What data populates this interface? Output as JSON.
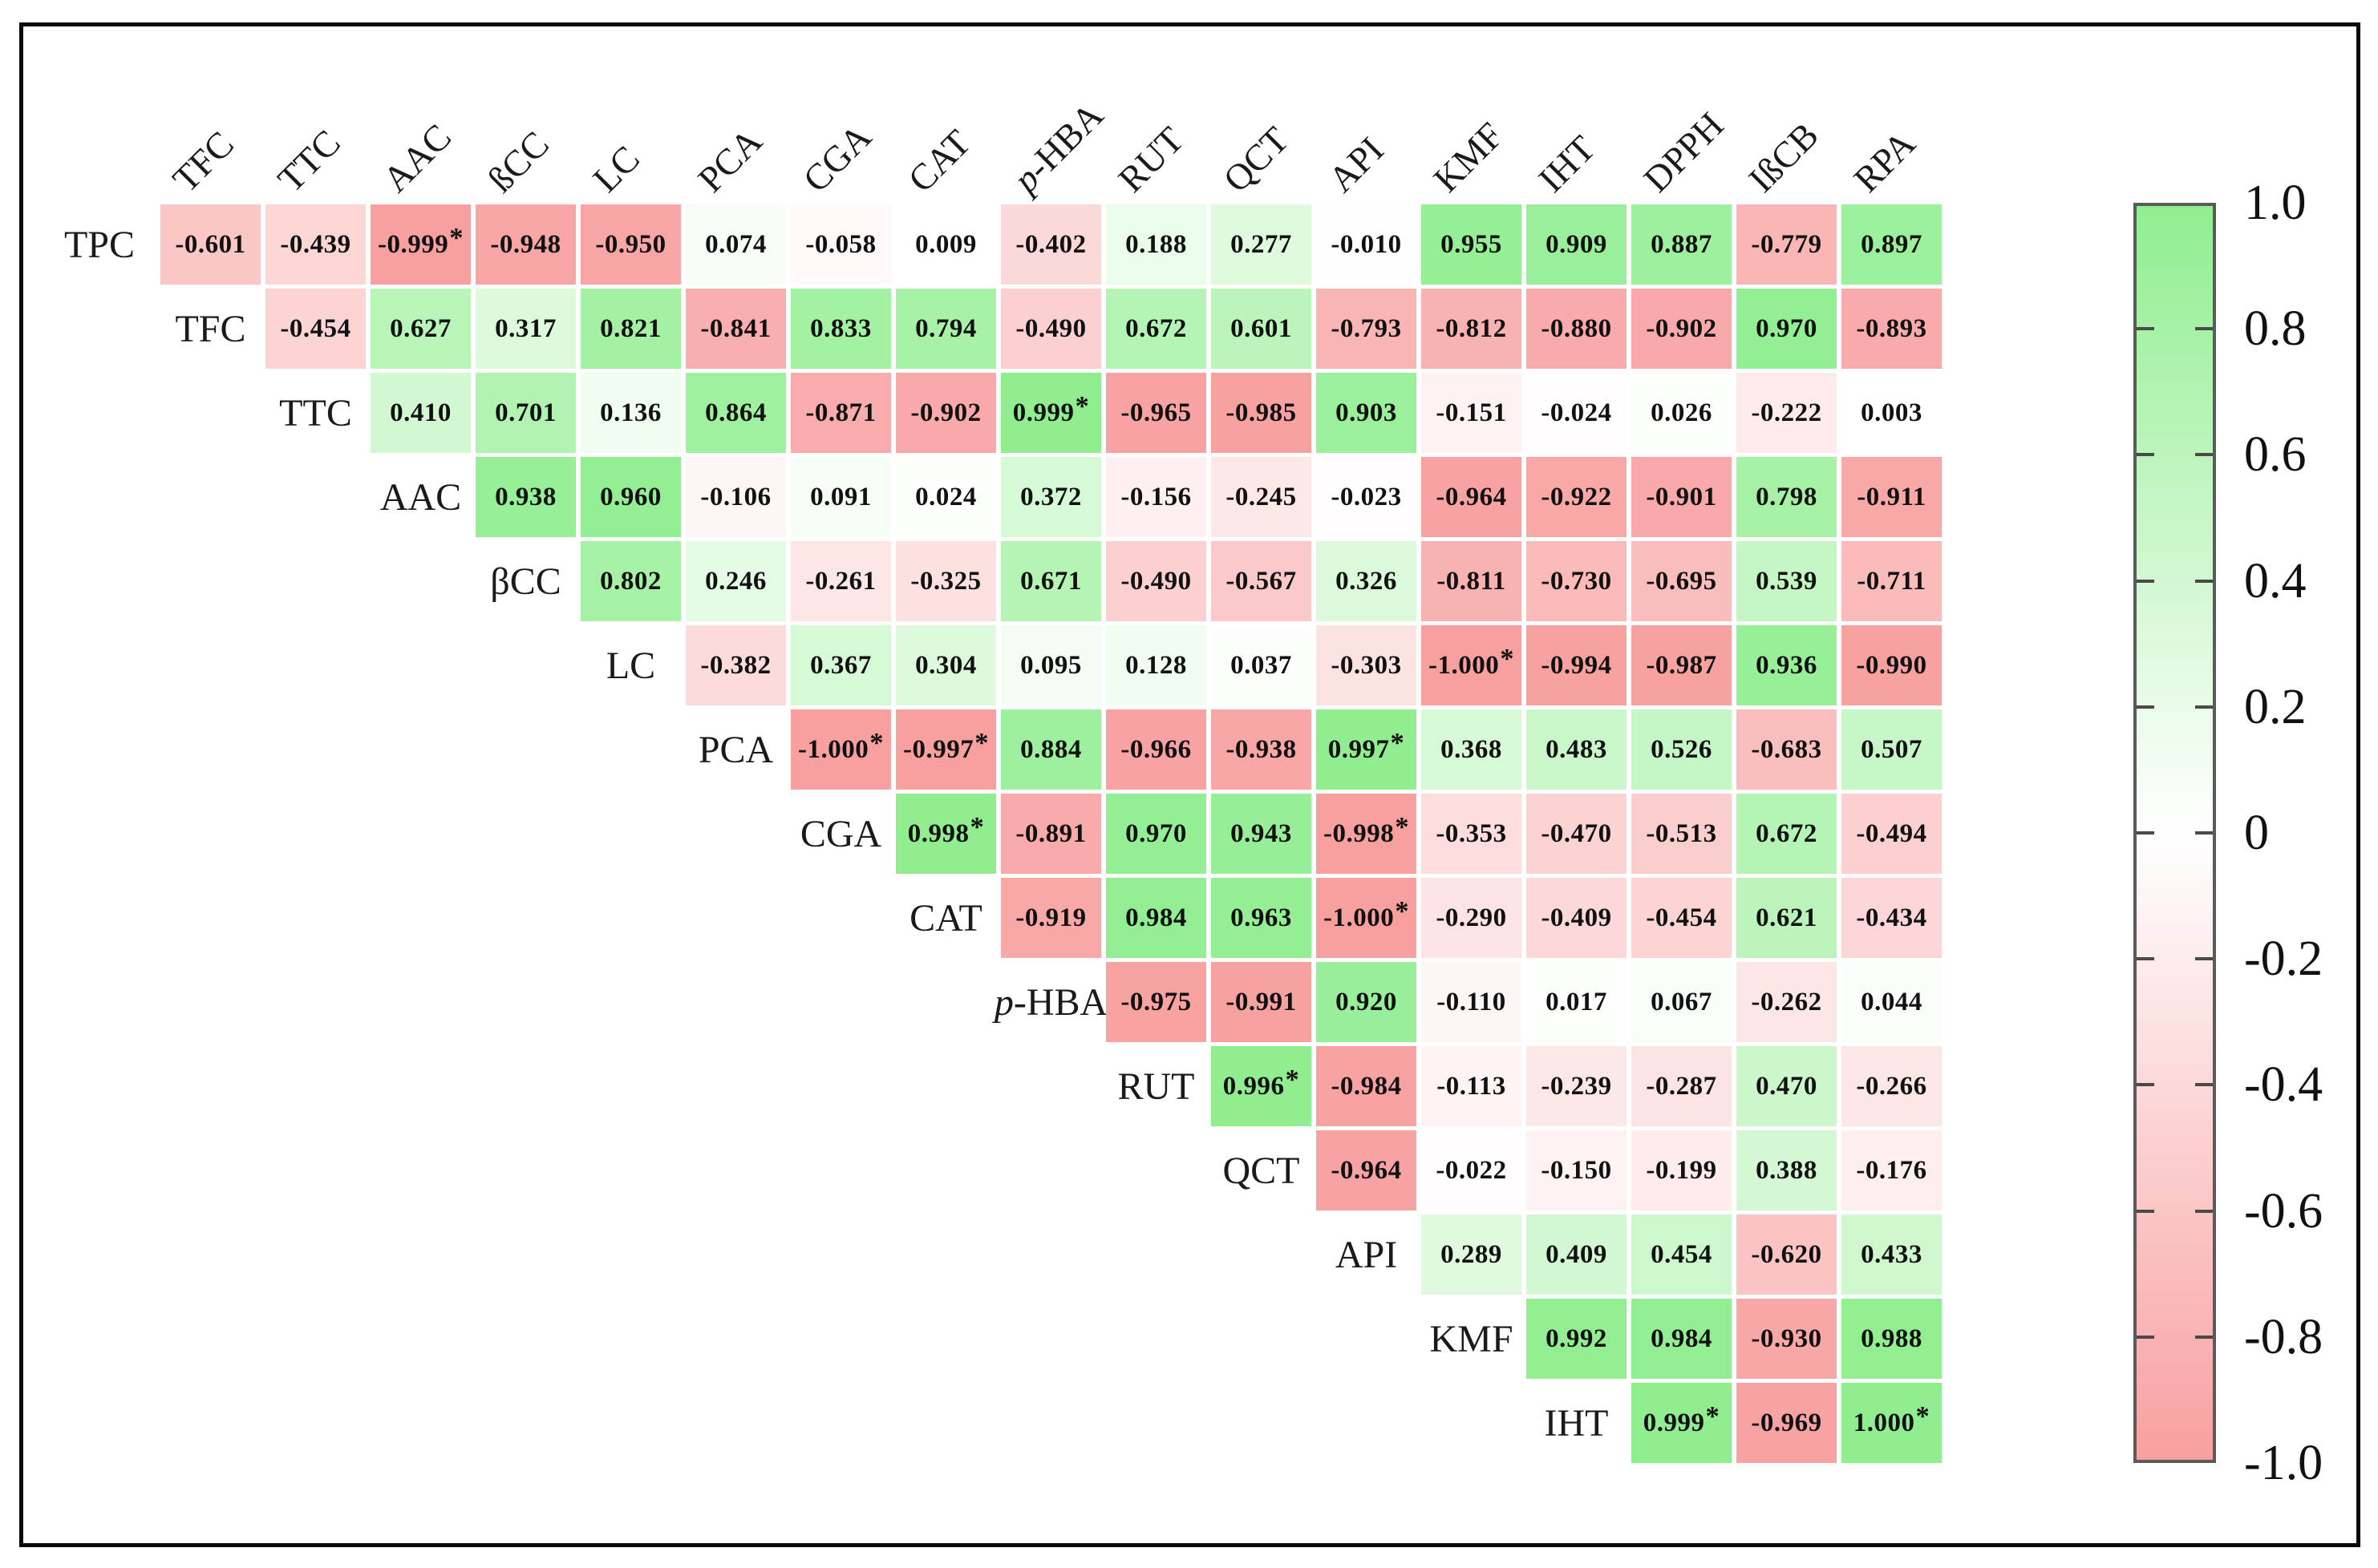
{
  "chart_data": {
    "type": "heatmap",
    "subtype": "upper-triangular-correlation-matrix",
    "rows": [
      "TPC",
      "TFC",
      "TTC",
      "AAC",
      "βCC",
      "LC",
      "PCA",
      "CGA",
      "CAT",
      "p-HBA",
      "RUT",
      "QCT",
      "API",
      "KMF",
      "IHT"
    ],
    "columns": [
      "TFC",
      "TTC",
      "AAC",
      "ßCC",
      "LC",
      "PCA",
      "CGA",
      "CAT",
      "p-HBA",
      "RUT",
      "QCT",
      "API",
      "KMF",
      "IHT",
      "DPPH",
      "IßCB",
      "RPA"
    ],
    "values": [
      [
        "-0.601",
        "-0.439",
        "-0.999*",
        "-0.948",
        "-0.950",
        "0.074",
        "-0.058",
        "0.009",
        "-0.402",
        "0.188",
        "0.277",
        "-0.010",
        "0.955",
        "0.909",
        "0.887",
        "-0.779",
        "0.897"
      ],
      [
        "-0.454",
        "0.627",
        "0.317",
        "0.821",
        "-0.841",
        "0.833",
        "0.794",
        "-0.490",
        "0.672",
        "0.601",
        "-0.793",
        "-0.812",
        "-0.880",
        "-0.902",
        "0.970",
        "-0.893"
      ],
      [
        "0.410",
        "0.701",
        "0.136",
        "0.864",
        "-0.871",
        "-0.902",
        "0.999*",
        "-0.965",
        "-0.985",
        "0.903",
        "-0.151",
        "-0.024",
        "0.026",
        "-0.222",
        "0.003"
      ],
      [
        "0.938",
        "0.960",
        "-0.106",
        "0.091",
        "0.024",
        "0.372",
        "-0.156",
        "-0.245",
        "-0.023",
        "-0.964",
        "-0.922",
        "-0.901",
        "0.798",
        "-0.911"
      ],
      [
        "0.802",
        "0.246",
        "-0.261",
        "-0.325",
        "0.671",
        "-0.490",
        "-0.567",
        "0.326",
        "-0.811",
        "-0.730",
        "-0.695",
        "0.539",
        "-0.711"
      ],
      [
        "-0.382",
        "0.367",
        "0.304",
        "0.095",
        "0.128",
        "0.037",
        "-0.303",
        "-1.000*",
        "-0.994",
        "-0.987",
        "0.936",
        "-0.990"
      ],
      [
        "-1.000*",
        "-0.997*",
        "0.884",
        "-0.966",
        "-0.938",
        "0.997*",
        "0.368",
        "0.483",
        "0.526",
        "-0.683",
        "0.507"
      ],
      [
        "0.998*",
        "-0.891",
        "0.970",
        "0.943",
        "-0.998*",
        "-0.353",
        "-0.470",
        "-0.513",
        "0.672",
        "-0.494"
      ],
      [
        "-0.919",
        "0.984",
        "0.963",
        "-1.000*",
        "-0.290",
        "-0.409",
        "-0.454",
        "0.621",
        "-0.434"
      ],
      [
        "-0.975",
        "-0.991",
        "0.920",
        "-0.110",
        "0.017",
        "0.067",
        "-0.262",
        "0.044"
      ],
      [
        "0.996*",
        "-0.984",
        "-0.113",
        "-0.239",
        "-0.287",
        "0.470",
        "-0.266"
      ],
      [
        "-0.964",
        "-0.022",
        "-0.150",
        "-0.199",
        "0.388",
        "-0.176"
      ],
      [
        "0.289",
        "0.409",
        "0.454",
        "-0.620",
        "0.433"
      ],
      [
        "0.992",
        "0.984",
        "-0.930",
        "0.988"
      ],
      [
        "0.999*",
        "-0.969",
        "1.000*"
      ]
    ],
    "significance_marker": "*",
    "colorbar": {
      "tick_labels": [
        "1.0",
        "0.8",
        "0.6",
        "0.4",
        "0.2",
        "0",
        "-0.2",
        "-0.4",
        "-0.6",
        "-0.8",
        "-1.0"
      ],
      "range": [
        -1,
        1
      ],
      "max_color": "#90EE90",
      "mid_color": "#FFFFFF",
      "min_color": "#F8A0A0"
    }
  }
}
